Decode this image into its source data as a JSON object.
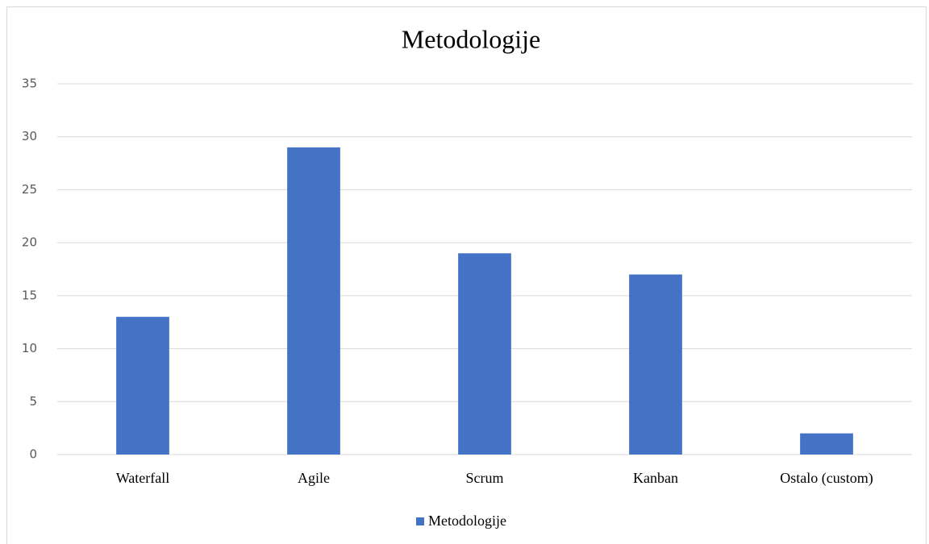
{
  "chart_data": {
    "type": "bar",
    "title": "Metodologije",
    "categories": [
      "Waterfall",
      "Agile",
      "Scrum",
      "Kanban",
      "Ostalo (custom)"
    ],
    "series": [
      {
        "name": "Metodologije",
        "color": "#4472c4",
        "values": [
          13,
          29,
          19,
          17,
          2
        ]
      }
    ],
    "ylim": [
      0,
      35
    ],
    "yticks": [
      0,
      5,
      10,
      15,
      20,
      25,
      30,
      35
    ],
    "grid": true,
    "legend": "bottom"
  }
}
